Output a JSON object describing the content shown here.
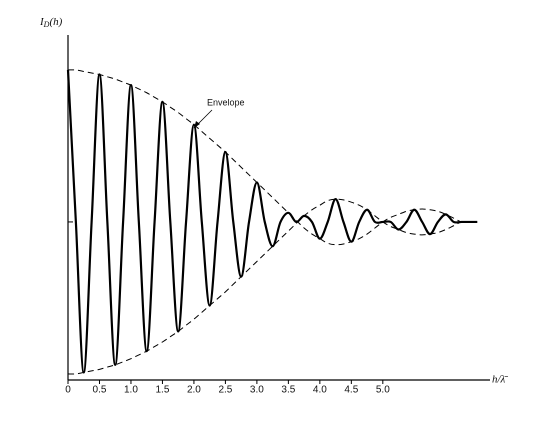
{
  "chart_data": {
    "type": "line",
    "y_label": [
      "I",
      "D",
      "(h)"
    ],
    "x_label": "h/λ̄",
    "annotation": "Envelope",
    "x": [
      0,
      0.125,
      0.25,
      0.375,
      0.5,
      0.625,
      0.75,
      0.875,
      1,
      1.125,
      1.25,
      1.375,
      1.5,
      1.625,
      1.75,
      1.875,
      2,
      2.125,
      2.25,
      2.375,
      2.5,
      2.625,
      2.75,
      2.875,
      3,
      3.125,
      3.25,
      3.375,
      3.5,
      3.625,
      3.75,
      3.875,
      4,
      4.125,
      4.25,
      4.375,
      4.5,
      4.625,
      4.75,
      4.875,
      5,
      5.125,
      5.25,
      5.375,
      5.5,
      5.625,
      5.75,
      5.875,
      6,
      6.125,
      6.25,
      6.375,
      6.5
    ],
    "series": [
      {
        "color": "#000000",
        "line_style": "solid",
        "values": [
          1.0,
          0,
          -0.99,
          0,
          0.97,
          0,
          -0.94,
          0,
          0.9,
          0,
          -0.85,
          0,
          0.79,
          0,
          -0.72,
          0,
          0.64,
          0,
          -0.55,
          0,
          0.46,
          0,
          -0.36,
          0,
          0.26,
          0,
          -0.16,
          0,
          0.06,
          0,
          0.04,
          0,
          -0.11,
          0,
          0.15,
          0,
          -0.13,
          0,
          0.08,
          0,
          0,
          0,
          -0.05,
          0,
          0.08,
          0,
          -0.08,
          0,
          0.05,
          0,
          0,
          0,
          0
        ]
      },
      {
        "color": "#000000",
        "line_style": "dashed",
        "values": [
          1.0,
          1.0,
          0.99,
          0.98,
          0.97,
          0.955,
          0.94,
          0.92,
          0.9,
          0.875,
          0.85,
          0.82,
          0.79,
          0.755,
          0.72,
          0.68,
          0.64,
          0.595,
          0.55,
          0.505,
          0.46,
          0.41,
          0.36,
          0.31,
          0.26,
          0.21,
          0.16,
          0.11,
          0.06,
          0.01,
          -0.04,
          -0.08,
          -0.11,
          -0.14,
          -0.15,
          -0.145,
          -0.13,
          -0.11,
          -0.08,
          -0.04,
          0,
          0.03,
          0.05,
          0.07,
          0.08,
          0.085,
          0.08,
          0.07,
          0.05,
          0.025,
          0,
          0,
          0
        ]
      },
      {
        "color": "#000000",
        "line_style": "dashed",
        "values": [
          -1.0,
          -1.0,
          -0.99,
          -0.98,
          -0.97,
          -0.955,
          -0.94,
          -0.92,
          -0.9,
          -0.875,
          -0.85,
          -0.82,
          -0.79,
          -0.755,
          -0.72,
          -0.68,
          -0.64,
          -0.595,
          -0.55,
          -0.505,
          -0.46,
          -0.41,
          -0.36,
          -0.31,
          -0.26,
          -0.21,
          -0.16,
          -0.11,
          -0.06,
          -0.01,
          0.04,
          0.08,
          0.11,
          0.14,
          0.15,
          0.145,
          0.13,
          0.11,
          0.08,
          0.04,
          0,
          -0.03,
          -0.05,
          -0.07,
          -0.08,
          -0.085,
          -0.08,
          -0.07,
          -0.05,
          -0.025,
          0,
          0,
          0
        ]
      }
    ],
    "xlim": [
      0,
      6.75
    ],
    "ylim": [
      -1.04,
      1.23
    ],
    "xticks": [
      0,
      0.5,
      {
        "value": 1,
        "label": "1.0"
      },
      1.5,
      {
        "value": 2,
        "label": "2.0"
      },
      2.5,
      {
        "value": 3,
        "label": "3.0"
      },
      3.5,
      {
        "value": 4,
        "label": "4.0"
      },
      4.5,
      {
        "value": 5,
        "label": "5.0"
      }
    ]
  }
}
